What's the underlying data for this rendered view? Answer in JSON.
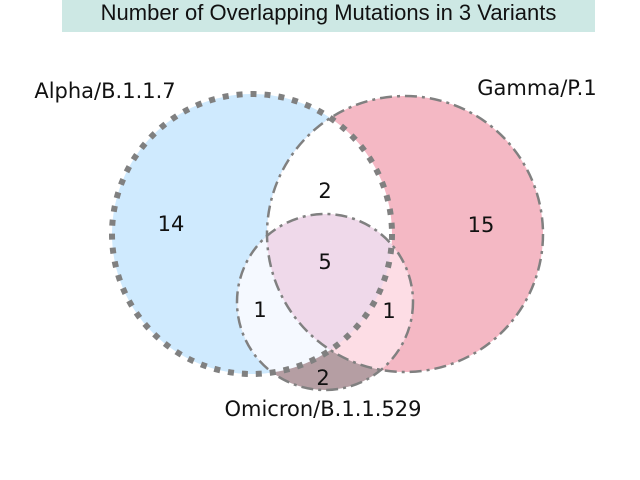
{
  "chart_data": {
    "type": "venn",
    "title": "Number of Overlapping Mutations in 3 Variants",
    "sets": [
      {
        "name": "Alpha/B.1.1.7",
        "color": "#cfeafe",
        "edge": "dotted"
      },
      {
        "name": "Gamma/P.1",
        "color": "#f4b8c4",
        "edge": "dashdot"
      },
      {
        "name": "Omicron/B.1.1.529",
        "color": "#f5f9ff",
        "edge": "dashdot"
      }
    ],
    "regions": [
      {
        "sets": [
          "Alpha/B.1.1.7"
        ],
        "value": 14
      },
      {
        "sets": [
          "Gamma/P.1"
        ],
        "value": 15
      },
      {
        "sets": [
          "Omicron/B.1.1.529"
        ],
        "value": 2
      },
      {
        "sets": [
          "Alpha/B.1.1.7",
          "Gamma/P.1"
        ],
        "value": 2
      },
      {
        "sets": [
          "Alpha/B.1.1.7",
          "Omicron/B.1.1.529"
        ],
        "value": 1
      },
      {
        "sets": [
          "Gamma/P.1",
          "Omicron/B.1.1.529"
        ],
        "value": 1
      },
      {
        "sets": [
          "Alpha/B.1.1.7",
          "Gamma/P.1",
          "Omicron/B.1.1.529"
        ],
        "value": 5
      }
    ]
  }
}
